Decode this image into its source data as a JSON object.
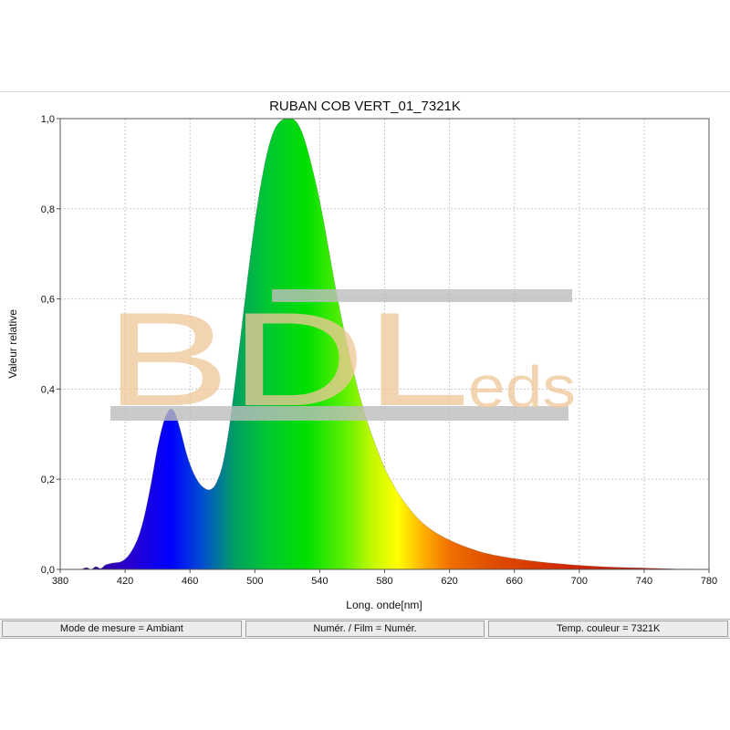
{
  "chart_data": {
    "type": "area",
    "title": "RUBAN COB VERT_01_7321K",
    "xlabel": "Long. onde[nm]",
    "ylabel": "Valeur relative",
    "xlim": [
      380,
      780
    ],
    "ylim": [
      0,
      1.0
    ],
    "x_ticks": [
      380,
      420,
      460,
      500,
      540,
      580,
      620,
      660,
      700,
      740,
      780
    ],
    "y_ticks": [
      {
        "value": 0.0,
        "label": "0,0"
      },
      {
        "value": 0.2,
        "label": "0,2"
      },
      {
        "value": 0.4,
        "label": "0,4"
      },
      {
        "value": 0.6,
        "label": "0,6"
      },
      {
        "value": 0.8,
        "label": "0,8"
      },
      {
        "value": 1.0,
        "label": "1,0"
      }
    ],
    "grid": true,
    "fill": "spectral-colors",
    "series": [
      {
        "x": [
          380,
          392,
          396,
          399,
          402,
          405,
          408,
          412,
          418,
          423,
          428,
          432,
          436,
          440,
          444,
          447,
          449,
          451,
          454,
          458,
          462,
          466,
          470,
          473,
          476,
          480,
          484,
          488,
          492,
          496,
          500,
          504,
          508,
          512,
          516,
          520,
          524,
          527,
          530,
          534,
          538,
          542,
          546,
          550,
          555,
          560,
          565,
          570,
          575,
          580,
          585,
          590,
          600,
          610,
          620,
          630,
          640,
          650,
          660,
          670,
          680,
          690,
          700,
          720,
          740,
          760,
          780
        ],
        "y": [
          0,
          0,
          0.004,
          0,
          0.006,
          0.002,
          0.01,
          0.014,
          0.018,
          0.035,
          0.07,
          0.12,
          0.19,
          0.27,
          0.33,
          0.353,
          0.355,
          0.345,
          0.31,
          0.255,
          0.215,
          0.19,
          0.178,
          0.178,
          0.19,
          0.23,
          0.31,
          0.42,
          0.54,
          0.66,
          0.77,
          0.86,
          0.93,
          0.975,
          0.995,
          1.0,
          0.998,
          0.985,
          0.96,
          0.91,
          0.85,
          0.78,
          0.7,
          0.62,
          0.53,
          0.45,
          0.38,
          0.32,
          0.27,
          0.225,
          0.19,
          0.16,
          0.115,
          0.085,
          0.065,
          0.05,
          0.038,
          0.03,
          0.024,
          0.019,
          0.015,
          0.012,
          0.009,
          0.005,
          0.003,
          0.001,
          0
        ]
      }
    ]
  },
  "watermark": {
    "main": "BDL",
    "suffix": "eds",
    "color": "#efc89a"
  },
  "status": {
    "measure_mode": "Mode de mesure = Ambiant",
    "numer": "Numér. / Film = Numér.",
    "temp": "Temp. couleur = 7321K"
  }
}
